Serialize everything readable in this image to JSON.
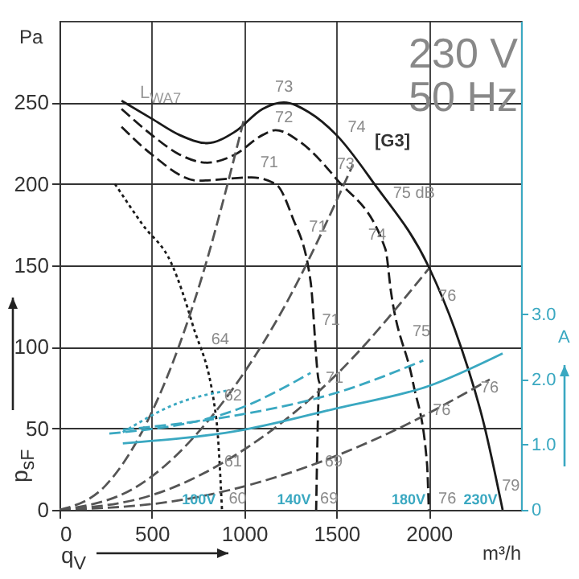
{
  "chart_data": {
    "type": "line",
    "xlabel": "q$_{V}$",
    "ylabel": "p$_{sF}$",
    "y2label": "A",
    "xlim": [
      0,
      2500
    ],
    "xticks": [
      0,
      500,
      1000,
      1500,
      2000
    ],
    "ylim": [
      0,
      300
    ],
    "yticks": [
      0,
      50,
      100,
      150,
      200,
      250
    ],
    "y2lim": [
      0,
      7.5
    ],
    "y2ticks": [
      0,
      {
        "value": 1,
        "label": "1.0"
      },
      {
        "value": 2,
        "label": "2.0"
      },
      {
        "value": 3,
        "label": "3.0"
      }
    ],
    "grid": true,
    "series": [
      {
        "color": "#1a1a1a",
        "line_style": "solid",
        "x": [
          336,
          500,
          650,
          800,
          950,
          1100,
          1215,
          1350,
          1500,
          1705,
          2000,
          2140,
          2300,
          2400
        ],
        "values": [
          251,
          240,
          230,
          225,
          232,
          246,
          250,
          244,
          230,
          200,
          149,
          111,
          52,
          0
        ]
      },
      {
        "color": "#1a1a1a",
        "line_style": "dashed",
        "x": [
          336,
          500,
          650,
          800,
          950,
          1100,
          1170,
          1300,
          1500,
          1765,
          1795,
          1915,
          1990,
          2000
        ],
        "values": [
          246,
          230,
          218,
          213,
          218,
          230,
          233,
          226,
          203,
          160,
          134,
          78,
          29,
          0
        ]
      },
      {
        "color": "#1a1a1a",
        "line_style": "dashed",
        "x": [
          336,
          500,
          750,
          1040,
          1170,
          1260,
          1360,
          1408,
          1390
        ],
        "values": [
          235,
          218,
          202,
          204,
          200,
          180,
          140,
          78,
          0
        ]
      },
      {
        "color": "#1a1a1a",
        "line_style": "dotted",
        "x": [
          300,
          450,
          607,
          720,
          850,
          880
        ],
        "values": [
          200,
          175,
          151,
          114,
          55,
          0
        ]
      },
      {
        "color": "#3aa8c1",
        "line_style": "solid",
        "axis": "y2",
        "x": [
          343,
          1000,
          1505,
          2000,
          2400
        ],
        "values": [
          1.02,
          1.23,
          1.56,
          1.9,
          2.4
        ]
      },
      {
        "color": "#3aa8c1",
        "line_style": "dashed",
        "axis": "y2",
        "x": [
          343,
          980,
          1505,
          1970
        ],
        "values": [
          1.23,
          1.46,
          1.8,
          2.29
        ]
      },
      {
        "color": "#3aa8c1",
        "line_style": "dashed",
        "axis": "y2",
        "x": [
          270,
          980,
          1360
        ],
        "values": [
          1.17,
          1.56,
          2.1
        ]
      },
      {
        "color": "#3aa8c1",
        "line_style": "dotted",
        "axis": "y2",
        "x": [
          343,
          635,
          910
        ],
        "values": [
          1.19,
          1.63,
          1.83
        ]
      },
      {
        "color": "#555555",
        "line_style": "dashed",
        "x": [
          0,
          250,
          500,
          750,
          1000
        ],
        "values": [
          0,
          15,
          60,
          135,
          240
        ]
      },
      {
        "color": "#555555",
        "line_style": "dashed",
        "x": [
          0,
          400,
          800,
          1200,
          1590
        ],
        "values": [
          0,
          13,
          54,
          121,
          212
        ]
      },
      {
        "color": "#555555",
        "line_style": "dashed",
        "x": [
          0,
          500,
          1000,
          1500,
          2000
        ],
        "values": [
          0,
          9,
          37,
          83,
          148
        ]
      },
      {
        "color": "#555555",
        "line_style": "dashed",
        "x": [
          0,
          600,
          1200,
          1800,
          2330
        ],
        "values": [
          0,
          5,
          21,
          48,
          80
        ]
      }
    ],
    "annotations": [
      "Pa",
      "m³/h",
      "230 V",
      "50 Hz",
      "[G3]",
      "L$_{WA7}$",
      "73",
      "72",
      "71",
      "74",
      "73",
      "75 dB",
      "74",
      "71",
      "71",
      "71",
      "64",
      "62",
      "61",
      "60",
      "69",
      "69",
      "76",
      "75",
      "76",
      "76",
      "76",
      "79",
      "100V",
      "140V",
      "180V",
      "230V"
    ]
  }
}
